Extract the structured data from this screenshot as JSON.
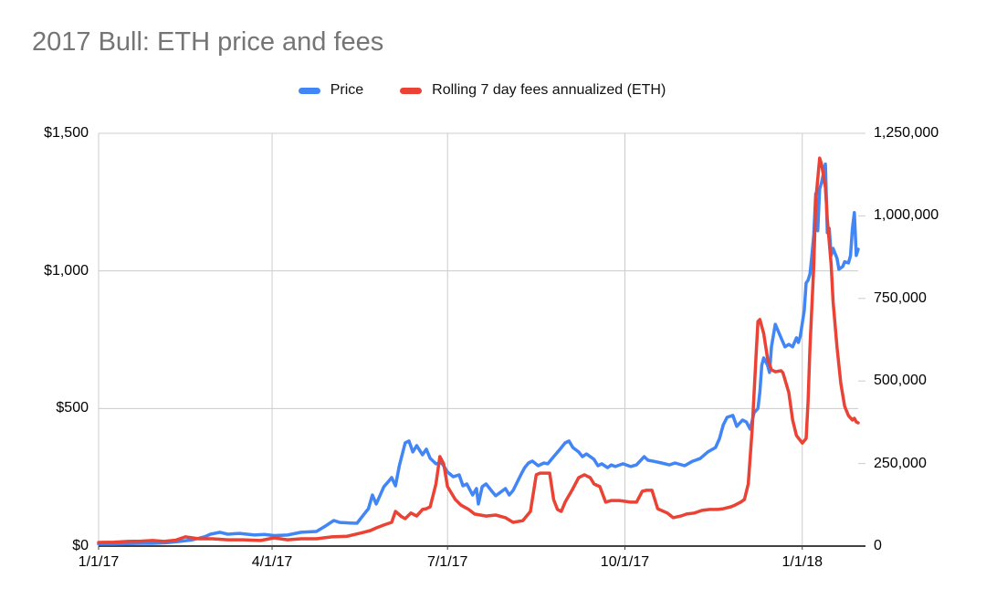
{
  "title": "2017 Bull: ETH price and fees",
  "legend": {
    "items": [
      {
        "label": "Price",
        "color": "#4285F4"
      },
      {
        "label": "Rolling 7 day fees annualized (ETH)",
        "color": "#EA4335"
      }
    ]
  },
  "colors": {
    "price_blue": "#4285F4",
    "fees_red": "#EA4335",
    "title_gray": "#757575",
    "gridline": "#CCCCCC",
    "axis_line": "#424242",
    "tick_text": "#000000"
  },
  "chart_data": {
    "type": "line",
    "title": "2017 Bull: ETH price and fees",
    "x_axis": {
      "tick_labels": [
        "1/1/17",
        "4/1/17",
        "7/1/17",
        "10/1/17",
        "1/1/18"
      ],
      "tick_days": [
        0,
        90,
        181,
        273,
        365
      ],
      "range_days": [
        0,
        394
      ]
    },
    "y_left": {
      "series": "Price",
      "tick_labels": [
        "$0",
        "$500",
        "$1,000",
        "$1,500"
      ],
      "ticks": [
        0,
        500,
        1000,
        1500
      ],
      "range": [
        0,
        1500
      ]
    },
    "y_right": {
      "series": "Rolling 7 day fees annualized (ETH)",
      "tick_labels": [
        "0",
        "250,000",
        "500,000",
        "750,000",
        "1,000,000",
        "1,250,000"
      ],
      "ticks": [
        0,
        250000,
        500000,
        750000,
        1000000,
        1250000
      ],
      "range": [
        0,
        1250000
      ]
    },
    "grid": "horizontal at left-axis ticks, vertical at x ticks",
    "legend_position": "top",
    "series": [
      {
        "name": "Price",
        "axis": "left",
        "color": "#4285F4",
        "points": [
          [
            0,
            8
          ],
          [
            8,
            8
          ],
          [
            15,
            9
          ],
          [
            22,
            10
          ],
          [
            28,
            10
          ],
          [
            35,
            12
          ],
          [
            42,
            17
          ],
          [
            48,
            22
          ],
          [
            51,
            27
          ],
          [
            55,
            34
          ],
          [
            58,
            43
          ],
          [
            63,
            50
          ],
          [
            67,
            43
          ],
          [
            73,
            46
          ],
          [
            81,
            40
          ],
          [
            86,
            42
          ],
          [
            91,
            38
          ],
          [
            98,
            40
          ],
          [
            105,
            50
          ],
          [
            113,
            53
          ],
          [
            117,
            70
          ],
          [
            122,
            93
          ],
          [
            125,
            86
          ],
          [
            130,
            84
          ],
          [
            134,
            83
          ],
          [
            137,
            110
          ],
          [
            140,
            136
          ],
          [
            142,
            186
          ],
          [
            144,
            153
          ],
          [
            148,
            216
          ],
          [
            150,
            232
          ],
          [
            152,
            249
          ],
          [
            154,
            219
          ],
          [
            156,
            292
          ],
          [
            159,
            375
          ],
          [
            161,
            382
          ],
          [
            163,
            342
          ],
          [
            165,
            365
          ],
          [
            168,
            332
          ],
          [
            170,
            352
          ],
          [
            172,
            319
          ],
          [
            175,
            299
          ],
          [
            178,
            302
          ],
          [
            181,
            269
          ],
          [
            184,
            252
          ],
          [
            187,
            259
          ],
          [
            189,
            219
          ],
          [
            191,
            226
          ],
          [
            194,
            186
          ],
          [
            196,
            209
          ],
          [
            197,
            153
          ],
          [
            199,
            216
          ],
          [
            201,
            226
          ],
          [
            204,
            199
          ],
          [
            206,
            183
          ],
          [
            208,
            193
          ],
          [
            211,
            209
          ],
          [
            213,
            186
          ],
          [
            215,
            202
          ],
          [
            219,
            259
          ],
          [
            221,
            285
          ],
          [
            223,
            302
          ],
          [
            225,
            309
          ],
          [
            228,
            292
          ],
          [
            231,
            302
          ],
          [
            233,
            299
          ],
          [
            236,
            325
          ],
          [
            239,
            349
          ],
          [
            242,
            375
          ],
          [
            244,
            382
          ],
          [
            246,
            358
          ],
          [
            249,
            342
          ],
          [
            251,
            325
          ],
          [
            253,
            335
          ],
          [
            257,
            315
          ],
          [
            259,
            292
          ],
          [
            261,
            299
          ],
          [
            264,
            285
          ],
          [
            266,
            295
          ],
          [
            268,
            289
          ],
          [
            272,
            299
          ],
          [
            276,
            289
          ],
          [
            279,
            295
          ],
          [
            283,
            325
          ],
          [
            285,
            312
          ],
          [
            288,
            308
          ],
          [
            292,
            302
          ],
          [
            296,
            295
          ],
          [
            299,
            302
          ],
          [
            304,
            292
          ],
          [
            308,
            308
          ],
          [
            312,
            318
          ],
          [
            316,
            342
          ],
          [
            320,
            358
          ],
          [
            322,
            390
          ],
          [
            324,
            440
          ],
          [
            326,
            468
          ],
          [
            329,
            475
          ],
          [
            331,
            435
          ],
          [
            334,
            458
          ],
          [
            336,
            451
          ],
          [
            338,
            425
          ],
          [
            340,
            485
          ],
          [
            342,
            500
          ],
          [
            343,
            560
          ],
          [
            344,
            657
          ],
          [
            345,
            684
          ],
          [
            347,
            657
          ],
          [
            348,
            631
          ],
          [
            349,
            724
          ],
          [
            351,
            806
          ],
          [
            354,
            757
          ],
          [
            356,
            724
          ],
          [
            358,
            733
          ],
          [
            360,
            724
          ],
          [
            362,
            757
          ],
          [
            363,
            740
          ],
          [
            364,
            763
          ],
          [
            366,
            856
          ],
          [
            367,
            956
          ],
          [
            368,
            966
          ],
          [
            369,
            989
          ],
          [
            370,
            1056
          ],
          [
            371,
            1133
          ],
          [
            372,
            1281
          ],
          [
            373,
            1146
          ],
          [
            374,
            1298
          ],
          [
            375,
            1321
          ],
          [
            377,
            1388
          ],
          [
            378,
            1139
          ],
          [
            379,
            1155
          ],
          [
            380,
            1056
          ],
          [
            381,
            1082
          ],
          [
            383,
            1046
          ],
          [
            384,
            1006
          ],
          [
            386,
            1016
          ],
          [
            387,
            1033
          ],
          [
            389,
            1029
          ],
          [
            390,
            1056
          ],
          [
            391,
            1155
          ],
          [
            392,
            1212
          ],
          [
            393,
            1056
          ],
          [
            394,
            1079
          ]
        ]
      },
      {
        "name": "Rolling 7 day fees annualized (ETH)",
        "axis": "right",
        "color": "#EA4335",
        "points": [
          [
            0,
            11000
          ],
          [
            8,
            12000
          ],
          [
            15,
            14000
          ],
          [
            22,
            15000
          ],
          [
            28,
            17000
          ],
          [
            34,
            14000
          ],
          [
            40,
            18000
          ],
          [
            45,
            28000
          ],
          [
            52,
            22000
          ],
          [
            59,
            22000
          ],
          [
            67,
            19000
          ],
          [
            75,
            19000
          ],
          [
            84,
            17000
          ],
          [
            91,
            25000
          ],
          [
            98,
            19000
          ],
          [
            105,
            22000
          ],
          [
            113,
            22000
          ],
          [
            121,
            28000
          ],
          [
            129,
            30000
          ],
          [
            137,
            41000
          ],
          [
            141,
            47000
          ],
          [
            144,
            55000
          ],
          [
            148,
            64000
          ],
          [
            152,
            72000
          ],
          [
            154,
            105000
          ],
          [
            157,
            90000
          ],
          [
            159,
            83000
          ],
          [
            162,
            100000
          ],
          [
            165,
            91000
          ],
          [
            168,
            111000
          ],
          [
            170,
            113000
          ],
          [
            172,
            119000
          ],
          [
            175,
            188000
          ],
          [
            177,
            271000
          ],
          [
            179,
            249000
          ],
          [
            181,
            180000
          ],
          [
            185,
            141000
          ],
          [
            188,
            124000
          ],
          [
            192,
            111000
          ],
          [
            195,
            97000
          ],
          [
            201,
            91000
          ],
          [
            206,
            94000
          ],
          [
            211,
            86000
          ],
          [
            215,
            72000
          ],
          [
            220,
            77000
          ],
          [
            224,
            105000
          ],
          [
            227,
            216000
          ],
          [
            229,
            221000
          ],
          [
            234,
            221000
          ],
          [
            236,
            141000
          ],
          [
            238,
            111000
          ],
          [
            240,
            105000
          ],
          [
            242,
            133000
          ],
          [
            246,
            174000
          ],
          [
            249,
            207000
          ],
          [
            252,
            216000
          ],
          [
            255,
            207000
          ],
          [
            257,
            188000
          ],
          [
            260,
            180000
          ],
          [
            263,
            133000
          ],
          [
            266,
            138000
          ],
          [
            270,
            138000
          ],
          [
            276,
            133000
          ],
          [
            279,
            133000
          ],
          [
            282,
            166000
          ],
          [
            284,
            169000
          ],
          [
            287,
            169000
          ],
          [
            290,
            113000
          ],
          [
            295,
            100000
          ],
          [
            298,
            86000
          ],
          [
            302,
            91000
          ],
          [
            305,
            97000
          ],
          [
            309,
            100000
          ],
          [
            313,
            108000
          ],
          [
            317,
            111000
          ],
          [
            321,
            111000
          ],
          [
            324,
            113000
          ],
          [
            328,
            119000
          ],
          [
            330,
            124000
          ],
          [
            333,
            133000
          ],
          [
            335,
            141000
          ],
          [
            337,
            188000
          ],
          [
            339,
            354000
          ],
          [
            341,
            575000
          ],
          [
            342,
            680000
          ],
          [
            343,
            686000
          ],
          [
            345,
            644000
          ],
          [
            347,
            567000
          ],
          [
            349,
            534000
          ],
          [
            351,
            528000
          ],
          [
            354,
            531000
          ],
          [
            355,
            525000
          ],
          [
            358,
            465000
          ],
          [
            360,
            382000
          ],
          [
            362,
            335000
          ],
          [
            365,
            312000
          ],
          [
            367,
            326000
          ],
          [
            368,
            437000
          ],
          [
            369,
            603000
          ],
          [
            371,
            852000
          ],
          [
            372,
            1045000
          ],
          [
            374,
            1175000
          ],
          [
            375,
            1156000
          ],
          [
            377,
            1087000
          ],
          [
            378,
            990000
          ],
          [
            380,
            852000
          ],
          [
            381,
            741000
          ],
          [
            383,
            603000
          ],
          [
            385,
            492000
          ],
          [
            387,
            423000
          ],
          [
            389,
            395000
          ],
          [
            391,
            382000
          ],
          [
            392,
            387000
          ],
          [
            393,
            376000
          ],
          [
            394,
            373000
          ]
        ]
      }
    ]
  }
}
